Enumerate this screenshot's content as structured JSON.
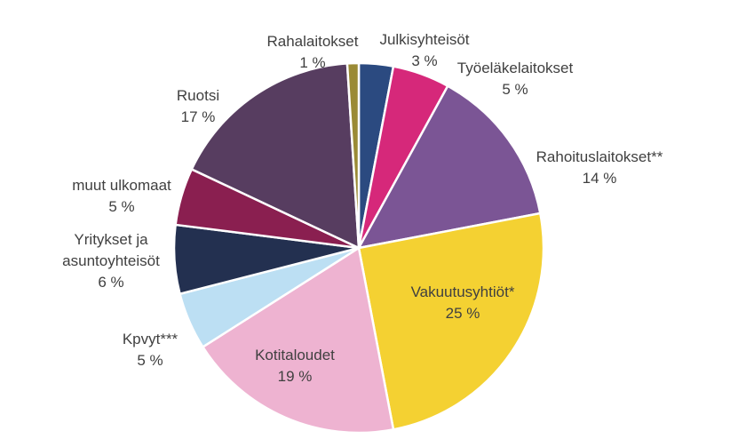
{
  "chart_data": {
    "type": "pie",
    "title": "",
    "start_angle_deg": 90,
    "direction": "clockwise",
    "slices": [
      {
        "label_lines": [
          "Julkisyhteisöt"
        ],
        "value": 3,
        "value_text": "3 %",
        "color": "#2b4a80"
      },
      {
        "label_lines": [
          "Työeläkelaitokset"
        ],
        "value": 5,
        "value_text": "5 %",
        "color": "#d6287a"
      },
      {
        "label_lines": [
          "Rahoituslaitokset**"
        ],
        "value": 14,
        "value_text": "14 %",
        "color": "#7b5595"
      },
      {
        "label_lines": [
          "Vakuutusyhtiöt*"
        ],
        "value": 25,
        "value_text": "25 %",
        "color": "#f4d132"
      },
      {
        "label_lines": [
          "Kotitaloudet"
        ],
        "value": 19,
        "value_text": "19 %",
        "color": "#eeb3d1"
      },
      {
        "label_lines": [
          "Kpvyt***"
        ],
        "value": 5,
        "value_text": "5 %",
        "color": "#bcdff3"
      },
      {
        "label_lines": [
          "Yritykset ja",
          "asuntoyhteisöt"
        ],
        "value": 6,
        "value_text": "6 %",
        "color": "#233050"
      },
      {
        "label_lines": [
          "muut ulkomaat"
        ],
        "value": 5,
        "value_text": "5 %",
        "color": "#8a1f50"
      },
      {
        "label_lines": [
          "Ruotsi"
        ],
        "value": 17,
        "value_text": "17 %",
        "color": "#573d60"
      },
      {
        "label_lines": [
          "Rahalaitokset"
        ],
        "value": 1,
        "value_text": "1 %",
        "color": "#9a8a35"
      }
    ],
    "legend": "none"
  }
}
